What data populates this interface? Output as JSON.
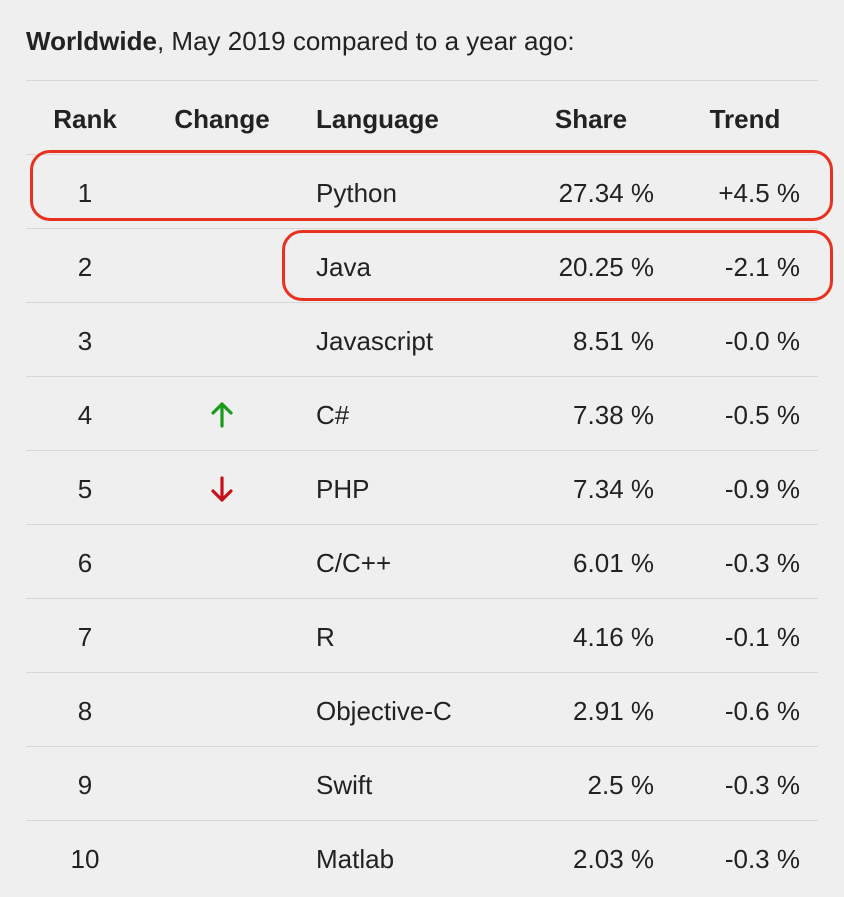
{
  "heading": {
    "bold": "Worldwide",
    "rest": ", May 2019 compared to a year ago:"
  },
  "columns": {
    "rank": "Rank",
    "change": "Change",
    "language": "Language",
    "share": "Share",
    "trend": "Trend"
  },
  "rows": [
    {
      "rank": "1",
      "change": "",
      "language": "Python",
      "share": "27.34 %",
      "trend": "+4.5 %"
    },
    {
      "rank": "2",
      "change": "",
      "language": "Java",
      "share": "20.25 %",
      "trend": "-2.1 %"
    },
    {
      "rank": "3",
      "change": "",
      "language": "Javascript",
      "share": "8.51 %",
      "trend": "-0.0 %"
    },
    {
      "rank": "4",
      "change": "up-arrow-icon",
      "language": "C#",
      "share": "7.38 %",
      "trend": "-0.5 %"
    },
    {
      "rank": "5",
      "change": "down-arrow-icon",
      "language": "PHP",
      "share": "7.34 %",
      "trend": "-0.9 %"
    },
    {
      "rank": "6",
      "change": "",
      "language": "C/C++",
      "share": "6.01 %",
      "trend": "-0.3 %"
    },
    {
      "rank": "7",
      "change": "",
      "language": "R",
      "share": "4.16 %",
      "trend": "-0.1 %"
    },
    {
      "rank": "8",
      "change": "",
      "language": "Objective-C",
      "share": "2.91 %",
      "trend": "-0.6 %"
    },
    {
      "rank": "9",
      "change": "",
      "language": "Swift",
      "share": "2.5 %",
      "trend": "-0.3 %"
    },
    {
      "rank": "10",
      "change": "",
      "language": "Matlab",
      "share": "2.03 %",
      "trend": "-0.3 %"
    }
  ],
  "colors": {
    "up_arrow": "#1a9a1a",
    "down_arrow": "#c8101a",
    "highlight": "#e8311f",
    "background": "#efefef"
  }
}
